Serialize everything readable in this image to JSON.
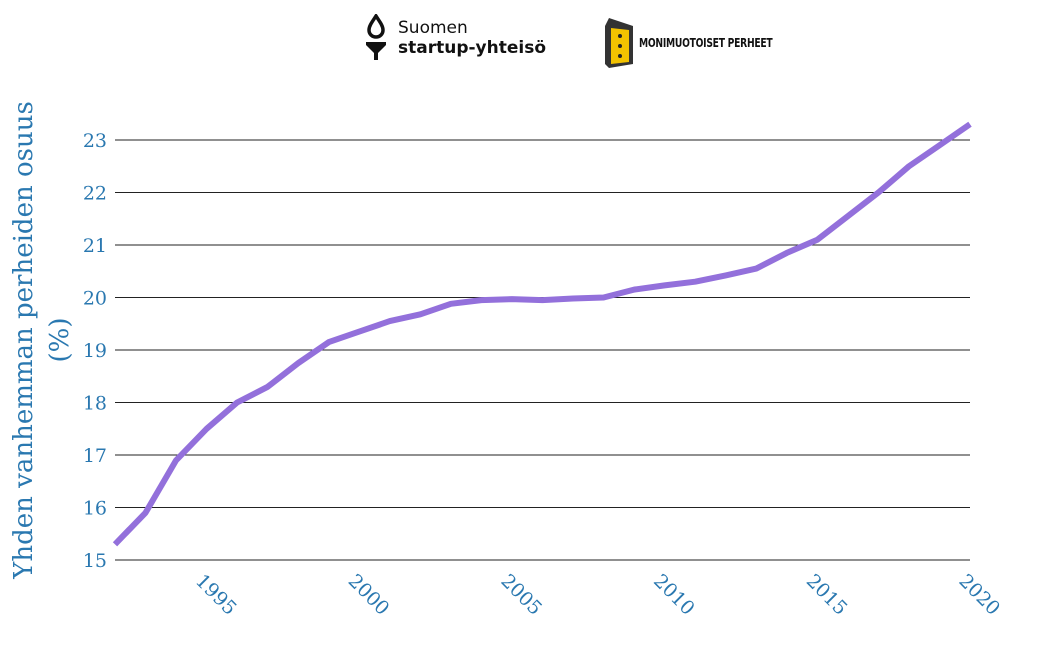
{
  "logos": {
    "startup_line1": "Suomen",
    "startup_line2": "startup-yhteisö",
    "perheet": "MONIMUOTOISET PERHEET"
  },
  "chart_data": {
    "type": "line",
    "ylabel_line1": "Yhden vanhemman perheiden osuus",
    "ylabel_line2": "(%)",
    "xlabel": "",
    "title": "",
    "xlim": [
      1992,
      2020
    ],
    "ylim": [
      15,
      23.5
    ],
    "x_ticks": [
      1995,
      2000,
      2005,
      2010,
      2015,
      2020
    ],
    "y_ticks": [
      15,
      16,
      17,
      18,
      19,
      20,
      21,
      22,
      23
    ],
    "grid": true,
    "line_color": "#9370db",
    "series": [
      {
        "x": [
          1992,
          1993,
          1994,
          1995,
          1996,
          1997,
          1998,
          1999,
          2000,
          2001,
          2002,
          2003,
          2004,
          2005,
          2006,
          2007,
          2008,
          2009,
          2010,
          2011,
          2012,
          2013,
          2014,
          2015,
          2016,
          2017,
          2018,
          2019,
          2020
        ],
        "values": [
          15.3,
          15.9,
          16.9,
          17.5,
          18.0,
          18.3,
          18.75,
          19.15,
          19.35,
          19.55,
          19.68,
          19.88,
          19.95,
          19.97,
          19.95,
          19.98,
          20.0,
          20.15,
          20.23,
          20.3,
          20.42,
          20.55,
          20.85,
          21.1,
          21.55,
          22.0,
          22.5,
          22.9,
          23.3
        ]
      }
    ]
  }
}
